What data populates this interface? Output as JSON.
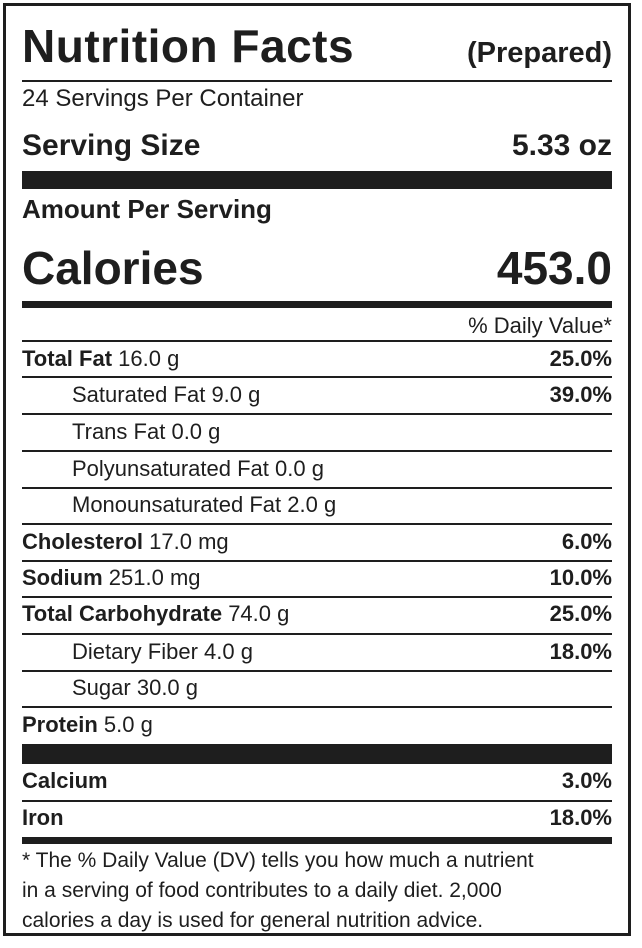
{
  "header": {
    "title": "Nutrition Facts",
    "subtitle": "(Prepared)"
  },
  "servings_per_container": "24 Servings Per Container",
  "serving_size": {
    "label": "Serving Size",
    "value": "5.33 oz"
  },
  "amount_per_serving": "Amount Per Serving",
  "calories": {
    "label": "Calories",
    "value": "453.0"
  },
  "dv_header": "% Daily Value*",
  "nutrients": [
    {
      "name": "Total Fat",
      "amount": "16.0 g",
      "dv": "25.0%"
    },
    {
      "name": "Saturated Fat",
      "amount": "9.0 g",
      "dv": "39.0%"
    },
    {
      "name": "Trans Fat",
      "amount": "0.0 g",
      "dv": ""
    },
    {
      "name": "Polyunsaturated Fat",
      "amount": "0.0 g",
      "dv": ""
    },
    {
      "name": "Monounsaturated Fat",
      "amount": "2.0 g",
      "dv": ""
    },
    {
      "name": "Cholesterol",
      "amount": "17.0 mg",
      "dv": "6.0%"
    },
    {
      "name": "Sodium",
      "amount": "251.0 mg",
      "dv": "10.0%"
    },
    {
      "name": "Total Carbohydrate",
      "amount": "74.0 g",
      "dv": "25.0%"
    },
    {
      "name": "Dietary Fiber",
      "amount": "4.0 g",
      "dv": "18.0%"
    },
    {
      "name": "Sugar",
      "amount": "30.0 g",
      "dv": ""
    },
    {
      "name": "Protein",
      "amount": "5.0 g",
      "dv": ""
    }
  ],
  "minerals": [
    {
      "name": "Calcium",
      "dv": "3.0%"
    },
    {
      "name": "Iron",
      "dv": "18.0%"
    }
  ],
  "footnote": [
    "* The % Daily Value (DV) tells you how much a nutrient",
    "in a serving of food contributes to a daily diet. 2,000",
    "calories a day is used for general nutrition advice."
  ]
}
